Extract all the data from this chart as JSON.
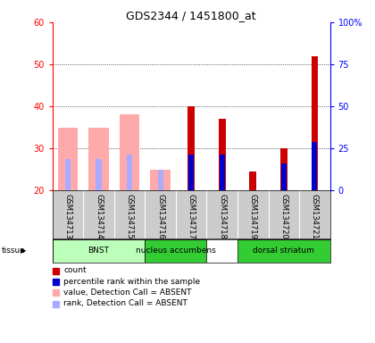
{
  "title": "GDS2344 / 1451800_at",
  "samples": [
    "GSM134713",
    "GSM134714",
    "GSM134715",
    "GSM134716",
    "GSM134717",
    "GSM134718",
    "GSM134719",
    "GSM134720",
    "GSM134721"
  ],
  "red_values": [
    null,
    null,
    null,
    null,
    40,
    37,
    24.5,
    30,
    52
  ],
  "blue_values": [
    null,
    null,
    null,
    null,
    28.5,
    28.5,
    null,
    26.5,
    31.5
  ],
  "pink_values": [
    35,
    35,
    38,
    25,
    null,
    null,
    null,
    null,
    null
  ],
  "lightblue_values": [
    27.5,
    27.5,
    28.5,
    25,
    null,
    null,
    null,
    null,
    null
  ],
  "ylim_left": [
    20,
    60
  ],
  "ylim_right": [
    0,
    100
  ],
  "yticks_left": [
    20,
    30,
    40,
    50,
    60
  ],
  "yticks_right": [
    0,
    25,
    50,
    75,
    100
  ],
  "ytick_labels_left": [
    "20",
    "30",
    "40",
    "50",
    "60"
  ],
  "ytick_labels_right": [
    "0",
    "25",
    "50",
    "75",
    "100%"
  ],
  "red_color": "#cc0000",
  "blue_color": "#0000cc",
  "pink_color": "#ffaaaa",
  "lightblue_color": "#aaaaff",
  "background_color": "#ffffff",
  "tissue_blocks": [
    {
      "start": 0,
      "end": 3,
      "color": "#bbffbb",
      "label": "BNST"
    },
    {
      "start": 3,
      "end": 5,
      "color": "#33cc33",
      "label": "nucleus accumbens"
    },
    {
      "start": 6,
      "end": 9,
      "color": "#33cc33",
      "label": "dorsal striatum"
    }
  ],
  "legend_items": [
    {
      "color": "#cc0000",
      "label": "count"
    },
    {
      "color": "#0000cc",
      "label": "percentile rank within the sample"
    },
    {
      "color": "#ffaaaa",
      "label": "value, Detection Call = ABSENT"
    },
    {
      "color": "#aaaaff",
      "label": "rank, Detection Call = ABSENT"
    }
  ]
}
